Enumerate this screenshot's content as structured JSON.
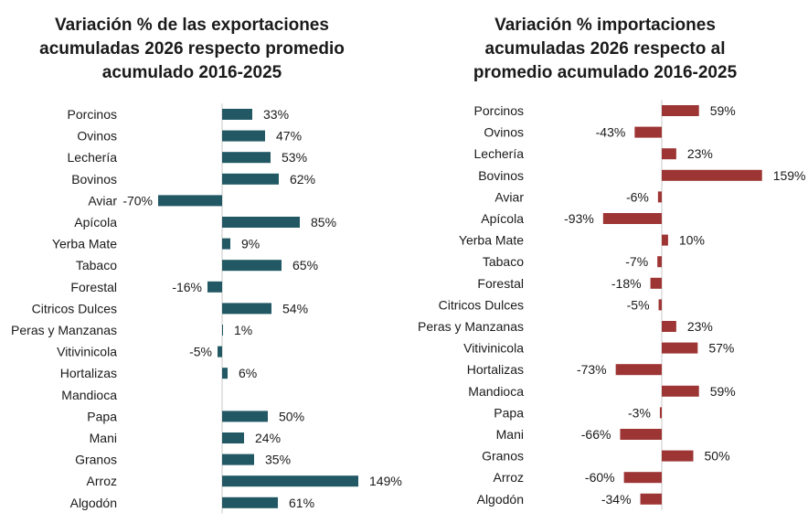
{
  "chart_data": [
    {
      "type": "bar",
      "orientation": "horizontal",
      "title_lines": [
        "Variación % de las exportaciones",
        "acumuladas 2026 respecto promedio",
        "acumulado 2016-2025"
      ],
      "categories": [
        "Porcinos",
        "Ovinos",
        "Lechería",
        "Bovinos",
        "Aviar",
        "Apícola",
        "Yerba Mate",
        "Tabaco",
        "Forestal",
        "Citricos Dulces",
        "Peras y Manzanas",
        "Vitivinicola",
        "Hortalizas",
        "Mandioca",
        "Papa",
        "Mani",
        "Granos",
        "Arroz",
        "Algodón"
      ],
      "values": [
        33,
        47,
        53,
        62,
        -70,
        85,
        9,
        65,
        -16,
        54,
        1,
        -5,
        6,
        null,
        50,
        24,
        35,
        149,
        61
      ],
      "value_labels": [
        "33%",
        "47%",
        "53%",
        "62%",
        "-70%",
        "85%",
        "9%",
        "65%",
        "-16%",
        "54%",
        "1%",
        "-5%",
        "6%",
        "",
        "50%",
        "24%",
        "35%",
        "149%",
        "61%"
      ],
      "color": "#215864",
      "xlabel": "",
      "ylabel": ""
    },
    {
      "type": "bar",
      "orientation": "horizontal",
      "title_lines": [
        "Variación % importaciones",
        "acumuladas 2026 respecto al",
        "promedio acumulado 2016-2025"
      ],
      "categories": [
        "Porcinos",
        "Ovinos",
        "Lechería",
        "Bovinos",
        "Aviar",
        "Apícola",
        "Yerba Mate",
        "Tabaco",
        "Forestal",
        "Citricos Dulces",
        "Peras y Manzanas",
        "Vitivinicola",
        "Hortalizas",
        "Mandioca",
        "Papa",
        "Mani",
        "Granos",
        "Arroz",
        "Algodón"
      ],
      "values": [
        59,
        -43,
        23,
        159,
        -6,
        -93,
        10,
        -7,
        -18,
        -5,
        23,
        57,
        -73,
        59,
        -3,
        -66,
        50,
        -60,
        -34
      ],
      "value_labels": [
        "59%",
        "-43%",
        "23%",
        "159%",
        "-6%",
        "-93%",
        "10%",
        "-7%",
        "-18%",
        "-5%",
        "23%",
        "57%",
        "-73%",
        "59%",
        "-3%",
        "-66%",
        "50%",
        "-60%",
        "-34%"
      ],
      "color": "#9e3535",
      "xlabel": "",
      "ylabel": ""
    }
  ]
}
